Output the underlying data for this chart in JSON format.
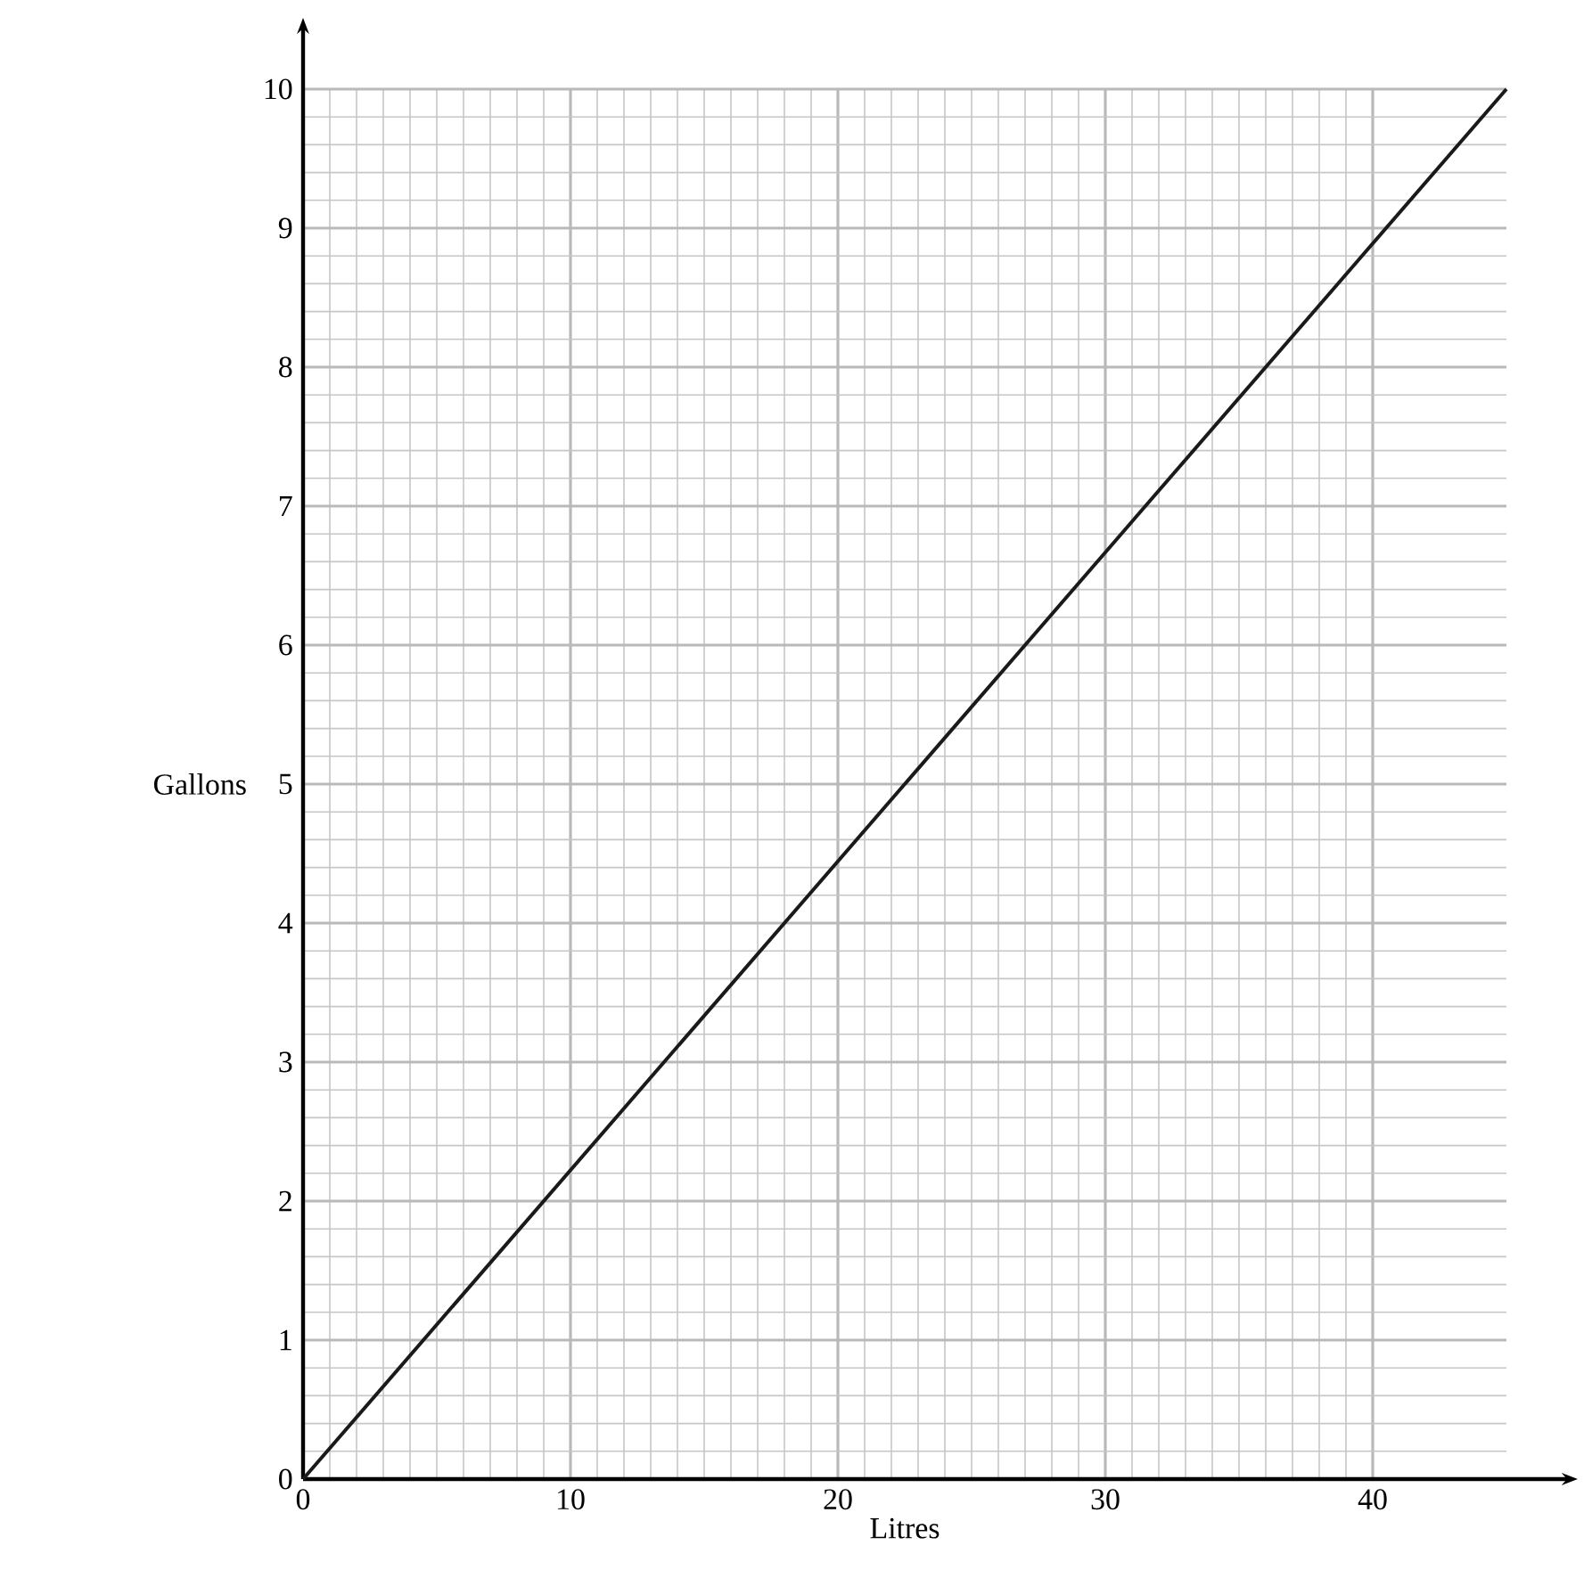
{
  "chart_data": {
    "type": "line",
    "xlabel": "Litres",
    "ylabel": "Gallons",
    "x": [
      0,
      45
    ],
    "values": [
      0,
      10
    ],
    "color": "#1a1a1a",
    "xlim": [
      0,
      45
    ],
    "ylim": [
      0,
      10
    ],
    "xticks": [
      0,
      10,
      20,
      30,
      40
    ],
    "yticks": [
      0,
      1,
      2,
      3,
      4,
      5,
      6,
      7,
      8,
      9,
      10
    ],
    "grid": true,
    "marker": "none",
    "line_style": "solid"
  }
}
